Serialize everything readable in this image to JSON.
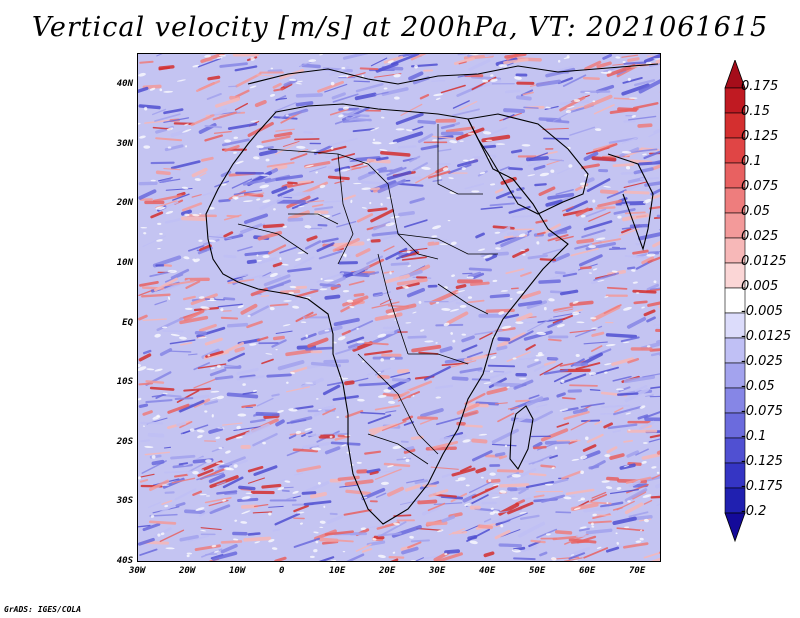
{
  "title": "Vertical velocity [m/s] at 200hPa, VT: 2021061615",
  "credit": "GrADS: IGES/COLA",
  "map": {
    "lon_range": [
      -30,
      75
    ],
    "lat_range": [
      -40,
      45
    ],
    "lat_ticks": [
      "40N",
      "30N",
      "20N",
      "10N",
      "EQ",
      "10S",
      "20S",
      "30S",
      "40S"
    ],
    "lon_ticks": [
      "30W",
      "20W",
      "10W",
      "0",
      "10E",
      "20E",
      "30E",
      "40E",
      "50E",
      "60E",
      "70E"
    ],
    "field": "vertical velocity",
    "units": "m/s",
    "level": "200hPa"
  },
  "colorbar": {
    "labels": [
      "0.175",
      "0.15",
      "0.125",
      "0.1",
      "0.075",
      "0.05",
      "0.025",
      "0.0125",
      "0.005",
      "-0.005",
      "-0.0125",
      "-0.025",
      "-0.05",
      "-0.075",
      "-0.1",
      "-0.125",
      "-0.175",
      "-0.2"
    ],
    "colors": [
      "#a50d1a",
      "#c01a22",
      "#d42f2f",
      "#e04545",
      "#e86161",
      "#ee7d7d",
      "#f39a9a",
      "#f7b8b8",
      "#fbd6d6",
      "#ffffff",
      "#dcdcfb",
      "#c0c0f5",
      "#a3a3ee",
      "#8686e6",
      "#6b6bdd",
      "#5050d2",
      "#3535c4",
      "#2020b0",
      "#140a9a"
    ]
  },
  "colors": {
    "positive": "#d9534f",
    "negative": "#5b5bdc",
    "ocean_bg": "#b9b9f0",
    "land_outline": "#000000"
  }
}
